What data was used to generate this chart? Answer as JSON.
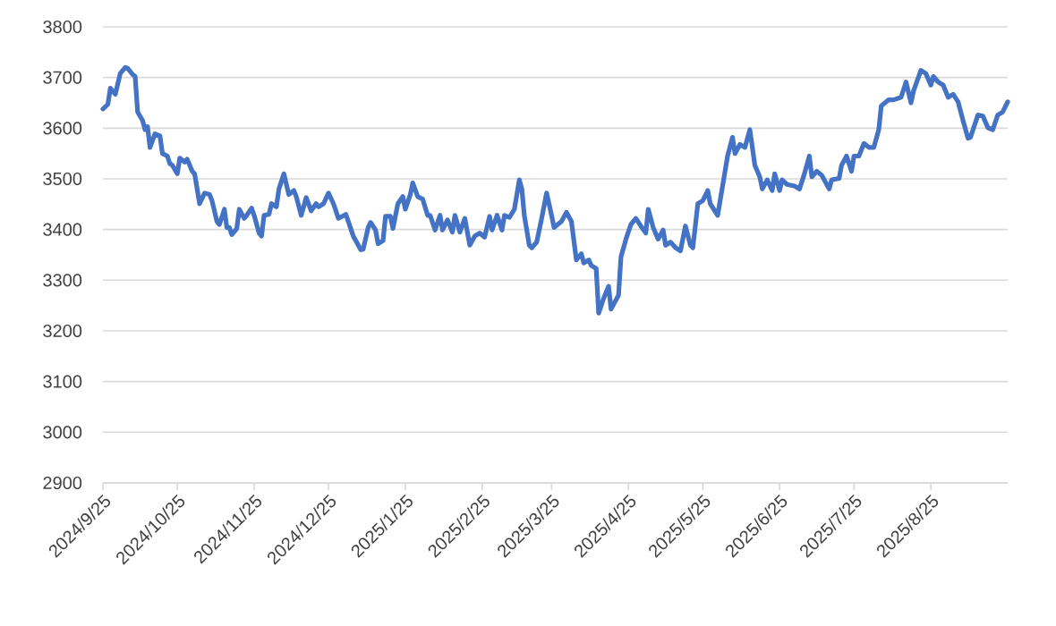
{
  "chart_data": {
    "type": "line",
    "x": [
      "2024-09-25",
      "2024-09-27",
      "2024-09-28",
      "2024-09-30",
      "2024-10-02",
      "2024-10-04",
      "2024-10-05",
      "2024-10-07",
      "2024-10-08",
      "2024-10-09",
      "2024-10-11",
      "2024-10-12",
      "2024-10-13",
      "2024-10-14",
      "2024-10-16",
      "2024-10-18",
      "2024-10-19",
      "2024-10-21",
      "2024-10-22",
      "2024-10-23",
      "2024-10-25",
      "2024-10-26",
      "2024-10-28",
      "2024-10-29",
      "2024-10-31",
      "2024-11-01",
      "2024-11-03",
      "2024-11-05",
      "2024-11-07",
      "2024-11-08",
      "2024-11-10",
      "2024-11-11",
      "2024-11-13",
      "2024-11-14",
      "2024-11-15",
      "2024-11-16",
      "2024-11-18",
      "2024-11-19",
      "2024-11-21",
      "2024-11-22",
      "2024-11-24",
      "2024-11-25",
      "2024-11-27",
      "2024-11-28",
      "2024-11-29",
      "2024-12-01",
      "2024-12-02",
      "2024-12-04",
      "2024-12-05",
      "2024-12-07",
      "2024-12-09",
      "2024-12-11",
      "2024-12-12",
      "2024-12-14",
      "2024-12-16",
      "2024-12-18",
      "2024-12-20",
      "2024-12-21",
      "2024-12-23",
      "2024-12-25",
      "2024-12-27",
      "2024-12-29",
      "2025-01-01",
      "2025-01-02",
      "2025-01-04",
      "2025-01-07",
      "2025-01-08",
      "2025-01-10",
      "2025-01-11",
      "2025-01-13",
      "2025-01-14",
      "2025-01-16",
      "2025-01-17",
      "2025-01-19",
      "2025-01-20",
      "2025-01-22",
      "2025-01-24",
      "2025-01-25",
      "2025-01-27",
      "2025-01-28",
      "2025-01-30",
      "2025-02-01",
      "2025-02-03",
      "2025-02-04",
      "2025-02-06",
      "2025-02-08",
      "2025-02-09",
      "2025-02-11",
      "2025-02-13",
      "2025-02-14",
      "2025-02-16",
      "2025-02-18",
      "2025-02-20",
      "2025-02-22",
      "2025-02-24",
      "2025-02-26",
      "2025-02-28",
      "2025-03-01",
      "2025-03-03",
      "2025-03-05",
      "2025-03-06",
      "2025-03-08",
      "2025-03-10",
      "2025-03-12",
      "2025-03-13",
      "2025-03-14",
      "2025-03-16",
      "2025-03-17",
      "2025-03-19",
      "2025-03-21",
      "2025-03-23",
      "2025-03-25",
      "2025-03-26",
      "2025-03-29",
      "2025-03-31",
      "2025-04-02",
      "2025-04-04",
      "2025-04-06",
      "2025-04-07",
      "2025-04-09",
      "2025-04-10",
      "2025-04-12",
      "2025-04-13",
      "2025-04-15",
      "2025-04-17",
      "2025-04-18",
      "2025-04-21",
      "2025-04-22",
      "2025-04-24",
      "2025-04-26",
      "2025-04-28",
      "2025-04-30",
      "2025-05-02",
      "2025-05-03",
      "2025-05-05",
      "2025-05-07",
      "2025-05-09",
      "2025-05-10",
      "2025-05-12",
      "2025-05-14",
      "2025-05-16",
      "2025-05-18",
      "2025-05-20",
      "2025-05-21",
      "2025-05-23",
      "2025-05-25",
      "2025-05-27",
      "2025-05-28",
      "2025-05-31",
      "2025-06-02",
      "2025-06-04",
      "2025-06-06",
      "2025-06-07",
      "2025-06-09",
      "2025-06-11",
      "2025-06-13",
      "2025-06-15",
      "2025-06-17",
      "2025-06-18",
      "2025-06-20",
      "2025-06-22",
      "2025-06-23",
      "2025-06-25",
      "2025-06-26",
      "2025-06-28",
      "2025-07-01",
      "2025-07-03",
      "2025-07-05",
      "2025-07-07",
      "2025-07-08",
      "2025-07-10",
      "2025-07-12",
      "2025-07-15",
      "2025-07-16",
      "2025-07-19",
      "2025-07-20",
      "2025-07-22",
      "2025-07-24",
      "2025-07-25",
      "2025-07-27",
      "2025-07-29",
      "2025-07-31",
      "2025-08-02",
      "2025-08-04",
      "2025-08-05",
      "2025-08-08",
      "2025-08-10",
      "2025-08-13",
      "2025-08-15",
      "2025-08-17",
      "2025-08-18",
      "2025-08-21",
      "2025-08-23",
      "2025-08-25",
      "2025-08-26",
      "2025-08-28",
      "2025-08-30",
      "2025-09-01",
      "2025-09-03",
      "2025-09-05",
      "2025-09-07",
      "2025-09-09",
      "2025-09-10",
      "2025-09-13",
      "2025-09-15",
      "2025-09-17",
      "2025-09-19",
      "2025-09-21",
      "2025-09-23",
      "2025-09-25"
    ],
    "series": [
      {
        "color": "#4472c4",
        "values": [
          3638,
          3647,
          3679,
          3667,
          3708,
          3720,
          3718,
          3706,
          3702,
          3632,
          3615,
          3597,
          3603,
          3562,
          3589,
          3585,
          3550,
          3545,
          3530,
          3527,
          3510,
          3541,
          3533,
          3539,
          3515,
          3510,
          3451,
          3472,
          3469,
          3457,
          3416,
          3410,
          3440,
          3404,
          3404,
          3390,
          3402,
          3440,
          3422,
          3428,
          3442,
          3428,
          3393,
          3387,
          3428,
          3430,
          3451,
          3445,
          3480,
          3510,
          3469,
          3477,
          3465,
          3428,
          3463,
          3437,
          3451,
          3445,
          3451,
          3472,
          3451,
          3422,
          3430,
          3416,
          3387,
          3360,
          3361,
          3404,
          3414,
          3399,
          3372,
          3378,
          3426,
          3426,
          3402,
          3451,
          3465,
          3440,
          3469,
          3492,
          3465,
          3460,
          3428,
          3428,
          3399,
          3428,
          3399,
          3419,
          3395,
          3428,
          3395,
          3422,
          3369,
          3387,
          3393,
          3385,
          3426,
          3399,
          3428,
          3399,
          3428,
          3424,
          3440,
          3498,
          3480,
          3428,
          3369,
          3364,
          3375,
          3422,
          3472,
          3428,
          3404,
          3416,
          3434,
          3416,
          3340,
          3352,
          3334,
          3340,
          3329,
          3323,
          3235,
          3264,
          3288,
          3243,
          3270,
          3346,
          3381,
          3410,
          3422,
          3407,
          3393,
          3440,
          3404,
          3381,
          3399,
          3369,
          3375,
          3364,
          3358,
          3407,
          3369,
          3364,
          3451,
          3457,
          3477,
          3451,
          3428,
          3486,
          3545,
          3582,
          3550,
          3568,
          3562,
          3597,
          3527,
          3504,
          3480,
          3498,
          3477,
          3510,
          3477,
          3498,
          3489,
          3486,
          3480,
          3510,
          3545,
          3504,
          3515,
          3507,
          3480,
          3498,
          3501,
          3527,
          3545,
          3515,
          3545,
          3545,
          3570,
          3562,
          3562,
          3597,
          3644,
          3656,
          3656,
          3661,
          3691,
          3650,
          3673,
          3714,
          3708,
          3685,
          3702,
          3691,
          3685,
          3661,
          3667,
          3652,
          3615,
          3580,
          3582,
          3626,
          3624,
          3601,
          3597,
          3626,
          3632,
          3652
        ]
      }
    ],
    "xlim": [
      "2024-09-25",
      "2025-09-25"
    ],
    "xticks": [
      {
        "value": "2024-09-25",
        "label": "2024/9/25"
      },
      {
        "value": "2024-10-25",
        "label": "2024/10/25"
      },
      {
        "value": "2024-11-25",
        "label": "2024/11/25"
      },
      {
        "value": "2024-12-25",
        "label": "2024/12/25"
      },
      {
        "value": "2025-01-25",
        "label": "2025/1/25"
      },
      {
        "value": "2025-02-25",
        "label": "2025/2/25"
      },
      {
        "value": "2025-03-25",
        "label": "2025/3/25"
      },
      {
        "value": "2025-04-25",
        "label": "2025/4/25"
      },
      {
        "value": "2025-05-25",
        "label": "2025/5/25"
      },
      {
        "value": "2025-06-25",
        "label": "2025/6/25"
      },
      {
        "value": "2025-07-25",
        "label": "2025/7/25"
      },
      {
        "value": "2025-08-25",
        "label": "2025/8/25"
      }
    ],
    "ylim": [
      2900,
      3800
    ],
    "yticks": [
      2900,
      3000,
      3100,
      3200,
      3300,
      3400,
      3500,
      3600,
      3700,
      3800
    ],
    "grid": "y",
    "legend": false,
    "marker": "none",
    "line_style": "solid"
  }
}
